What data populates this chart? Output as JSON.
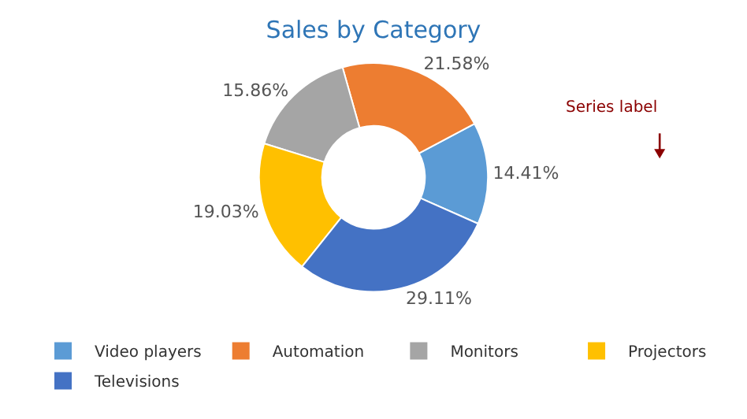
{
  "chart_data": {
    "type": "donut",
    "title": "Sales by Category",
    "categories": [
      "Video players",
      "Automation",
      "Monitors",
      "Projectors",
      "Televisions"
    ],
    "values": [
      14.41,
      21.58,
      15.86,
      19.03,
      29.11
    ],
    "colors": [
      "#5b9bd5",
      "#ed7d31",
      "#a5a5a5",
      "#ffc000",
      "#4472c4"
    ],
    "value_labels": [
      "14.41%",
      "21.58%",
      "15.86%",
      "19.03%",
      "29.11%"
    ],
    "annotations": [
      "Series label"
    ],
    "legend": "bottom"
  }
}
